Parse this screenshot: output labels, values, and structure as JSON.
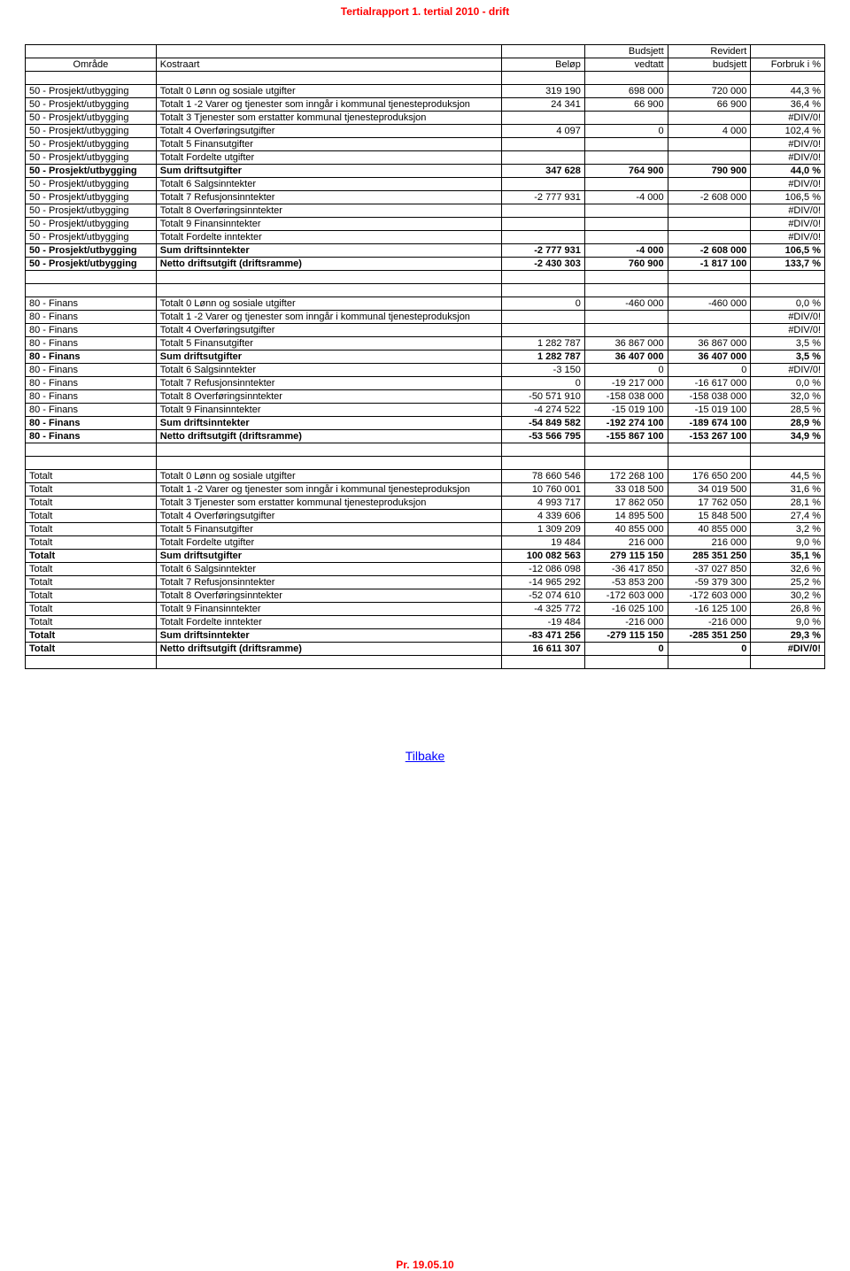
{
  "header": "Tertialrapport 1. tertial 2010 - drift",
  "footer": "Pr. 19.05.10",
  "tilbake": "Tilbake",
  "columns": {
    "omrade": "Område",
    "kostraart": "Kostraart",
    "belop": "Beløp",
    "budsjett_top": "Budsjett",
    "budsjett_bot": "vedtatt",
    "revidert_top": "Revidert",
    "revidert_bot": "budsjett",
    "forbruk": "Forbruk i %"
  },
  "sections": [
    {
      "rows": [
        {
          "o": "50 - Prosjekt/utbygging",
          "k": "Totalt 0 Lønn og sosiale utgifter",
          "b": "319 190",
          "bv": "698 000",
          "rb": "720 000",
          "f": "44,3 %",
          "bold": false
        },
        {
          "o": "50 - Prosjekt/utbygging",
          "k": "Totalt 1 -2 Varer og tjenester som inngår i kommunal tjenesteproduksjon",
          "b": "24 341",
          "bv": "66 900",
          "rb": "66 900",
          "f": "36,4 %",
          "bold": false
        },
        {
          "o": "50 - Prosjekt/utbygging",
          "k": "Totalt 3 Tjenester som erstatter kommunal tjenesteproduksjon",
          "b": "",
          "bv": "",
          "rb": "",
          "f": "#DIV/0!",
          "bold": false
        },
        {
          "o": "50 - Prosjekt/utbygging",
          "k": "Totalt 4 Overføringsutgifter",
          "b": "4 097",
          "bv": "0",
          "rb": "4 000",
          "f": "102,4 %",
          "bold": false
        },
        {
          "o": "50 - Prosjekt/utbygging",
          "k": "Totalt 5 Finansutgifter",
          "b": "",
          "bv": "",
          "rb": "",
          "f": "#DIV/0!",
          "bold": false
        },
        {
          "o": "50 - Prosjekt/utbygging",
          "k": "Totalt Fordelte utgifter",
          "b": "",
          "bv": "",
          "rb": "",
          "f": "#DIV/0!",
          "bold": false
        },
        {
          "o": "50 - Prosjekt/utbygging",
          "k": "Sum driftsutgifter",
          "b": "347 628",
          "bv": "764 900",
          "rb": "790 900",
          "f": "44,0 %",
          "bold": true
        },
        {
          "o": "50 - Prosjekt/utbygging",
          "k": "Totalt 6 Salgsinntekter",
          "b": "",
          "bv": "",
          "rb": "",
          "f": "#DIV/0!",
          "bold": false
        },
        {
          "o": "50 - Prosjekt/utbygging",
          "k": "Totalt 7 Refusjonsinntekter",
          "b": "-2 777 931",
          "bv": "-4 000",
          "rb": "-2 608 000",
          "f": "106,5 %",
          "bold": false
        },
        {
          "o": "50 - Prosjekt/utbygging",
          "k": "Totalt 8 Overføringsinntekter",
          "b": "",
          "bv": "",
          "rb": "",
          "f": "#DIV/0!",
          "bold": false
        },
        {
          "o": "50 - Prosjekt/utbygging",
          "k": "Totalt 9 Finansinntekter",
          "b": "",
          "bv": "",
          "rb": "",
          "f": "#DIV/0!",
          "bold": false
        },
        {
          "o": "50 - Prosjekt/utbygging",
          "k": "Totalt Fordelte inntekter",
          "b": "",
          "bv": "",
          "rb": "",
          "f": "#DIV/0!",
          "bold": false
        },
        {
          "o": "50 - Prosjekt/utbygging",
          "k": "Sum driftsinntekter",
          "b": "-2 777 931",
          "bv": "-4 000",
          "rb": "-2 608 000",
          "f": "106,5 %",
          "bold": true
        },
        {
          "o": "50 - Prosjekt/utbygging",
          "k": "Netto driftsutgift (driftsramme)",
          "b": "-2 430 303",
          "bv": "760 900",
          "rb": "-1 817 100",
          "f": "133,7 %",
          "bold": true
        }
      ]
    },
    {
      "rows": [
        {
          "o": "80 - Finans",
          "k": "Totalt 0 Lønn og sosiale utgifter",
          "b": "0",
          "bv": "-460 000",
          "rb": "-460 000",
          "f": "0,0 %",
          "bold": false
        },
        {
          "o": "80 - Finans",
          "k": "Totalt 1 -2 Varer og tjenester som inngår i kommunal tjenesteproduksjon",
          "b": "",
          "bv": "",
          "rb": "",
          "f": "#DIV/0!",
          "bold": false
        },
        {
          "o": "80 - Finans",
          "k": "Totalt 4 Overføringsutgifter",
          "b": "",
          "bv": "",
          "rb": "",
          "f": "#DIV/0!",
          "bold": false
        },
        {
          "o": "80 - Finans",
          "k": "Totalt 5 Finansutgifter",
          "b": "1 282 787",
          "bv": "36 867 000",
          "rb": "36 867 000",
          "f": "3,5 %",
          "bold": false
        },
        {
          "o": "80 - Finans",
          "k": "Sum driftsutgifter",
          "b": "1 282 787",
          "bv": "36 407 000",
          "rb": "36 407 000",
          "f": "3,5 %",
          "bold": true
        },
        {
          "o": "80 - Finans",
          "k": "Totalt 6 Salgsinntekter",
          "b": "-3 150",
          "bv": "0",
          "rb": "0",
          "f": "#DIV/0!",
          "bold": false
        },
        {
          "o": "80 - Finans",
          "k": "Totalt 7 Refusjonsinntekter",
          "b": "0",
          "bv": "-19 217 000",
          "rb": "-16 617 000",
          "f": "0,0 %",
          "bold": false
        },
        {
          "o": "80 - Finans",
          "k": "Totalt 8 Overføringsinntekter",
          "b": "-50 571 910",
          "bv": "-158 038 000",
          "rb": "-158 038 000",
          "f": "32,0 %",
          "bold": false
        },
        {
          "o": "80 - Finans",
          "k": "Totalt 9 Finansinntekter",
          "b": "-4 274 522",
          "bv": "-15 019 100",
          "rb": "-15 019 100",
          "f": "28,5 %",
          "bold": false
        },
        {
          "o": "80 - Finans",
          "k": "Sum driftsinntekter",
          "b": "-54 849 582",
          "bv": "-192 274 100",
          "rb": "-189 674 100",
          "f": "28,9 %",
          "bold": true
        },
        {
          "o": "80 - Finans",
          "k": "Netto driftsutgift (driftsramme)",
          "b": "-53 566 795",
          "bv": "-155 867 100",
          "rb": "-153 267 100",
          "f": "34,9 %",
          "bold": true
        }
      ]
    },
    {
      "rows": [
        {
          "o": "Totalt",
          "k": "Totalt 0 Lønn og sosiale utgifter",
          "b": "78 660 546",
          "bv": "172 268 100",
          "rb": "176 650 200",
          "f": "44,5 %",
          "bold": false
        },
        {
          "o": "Totalt",
          "k": "Totalt 1 -2 Varer og tjenester som inngår i kommunal tjenesteproduksjon",
          "b": "10 760 001",
          "bv": "33 018 500",
          "rb": "34 019 500",
          "f": "31,6 %",
          "bold": false
        },
        {
          "o": "Totalt",
          "k": "Totalt 3 Tjenester som erstatter kommunal tjenesteproduksjon",
          "b": "4 993 717",
          "bv": "17 862 050",
          "rb": "17 762 050",
          "f": "28,1 %",
          "bold": false
        },
        {
          "o": "Totalt",
          "k": "Totalt 4 Overføringsutgifter",
          "b": "4 339 606",
          "bv": "14 895 500",
          "rb": "15 848 500",
          "f": "27,4 %",
          "bold": false
        },
        {
          "o": "Totalt",
          "k": "Totalt 5 Finansutgifter",
          "b": "1 309 209",
          "bv": "40 855 000",
          "rb": "40 855 000",
          "f": "3,2 %",
          "bold": false
        },
        {
          "o": "Totalt",
          "k": "Totalt Fordelte utgifter",
          "b": "19 484",
          "bv": "216 000",
          "rb": "216 000",
          "f": "9,0 %",
          "bold": false
        },
        {
          "o": "Totalt",
          "k": "Sum driftsutgifter",
          "b": "100 082 563",
          "bv": "279 115 150",
          "rb": "285 351 250",
          "f": "35,1 %",
          "bold": true
        },
        {
          "o": "Totalt",
          "k": "Totalt 6 Salgsinntekter",
          "b": "-12 086 098",
          "bv": "-36 417 850",
          "rb": "-37 027 850",
          "f": "32,6 %",
          "bold": false
        },
        {
          "o": "Totalt",
          "k": "Totalt 7 Refusjonsinntekter",
          "b": "-14 965 292",
          "bv": "-53 853 200",
          "rb": "-59 379 300",
          "f": "25,2 %",
          "bold": false
        },
        {
          "o": "Totalt",
          "k": "Totalt 8 Overføringsinntekter",
          "b": "-52 074 610",
          "bv": "-172 603 000",
          "rb": "-172 603 000",
          "f": "30,2 %",
          "bold": false
        },
        {
          "o": "Totalt",
          "k": "Totalt 9 Finansinntekter",
          "b": "-4 325 772",
          "bv": "-16 025 100",
          "rb": "-16 125 100",
          "f": "26,8 %",
          "bold": false
        },
        {
          "o": "Totalt",
          "k": "Totalt Fordelte inntekter",
          "b": "-19 484",
          "bv": "-216 000",
          "rb": "-216 000",
          "f": "9,0 %",
          "bold": false
        },
        {
          "o": "Totalt",
          "k": "Sum driftsinntekter",
          "b": "-83 471 256",
          "bv": "-279 115 150",
          "rb": "-285 351 250",
          "f": "29,3 %",
          "bold": true
        },
        {
          "o": "Totalt",
          "k": "Netto driftsutgift (driftsramme)",
          "b": "16 611 307",
          "bv": "0",
          "rb": "0",
          "f": "#DIV/0!",
          "bold": true
        }
      ]
    }
  ]
}
